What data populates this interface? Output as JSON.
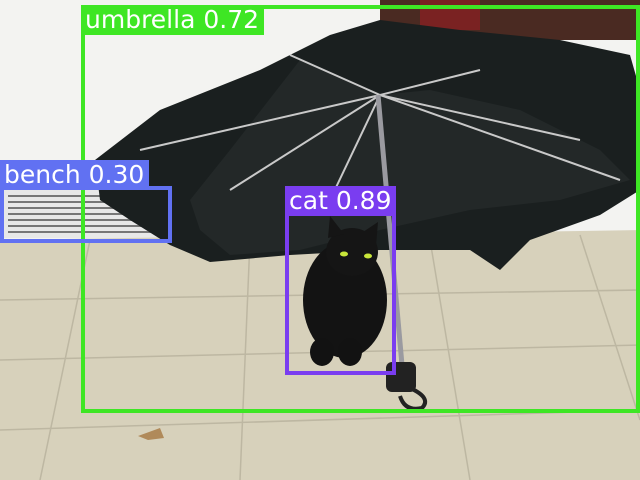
{
  "image": {
    "description_free": true
  },
  "detections": [
    {
      "id": "umbrella",
      "label": "umbrella 0.72",
      "class": "umbrella",
      "score": 0.72,
      "color": "#3ee624"
    },
    {
      "id": "bench",
      "label": "bench 0.30",
      "class": "bench",
      "score": 0.3,
      "color": "#6171f2"
    },
    {
      "id": "cat",
      "label": "cat 0.89",
      "class": "cat",
      "score": 0.89,
      "color": "#7a3df0"
    }
  ],
  "colors": {
    "floor": "#d8d2bd",
    "wall": "#f4f4f2",
    "umbrella_canopy": "#1a1e1e",
    "cat": "#121212"
  }
}
